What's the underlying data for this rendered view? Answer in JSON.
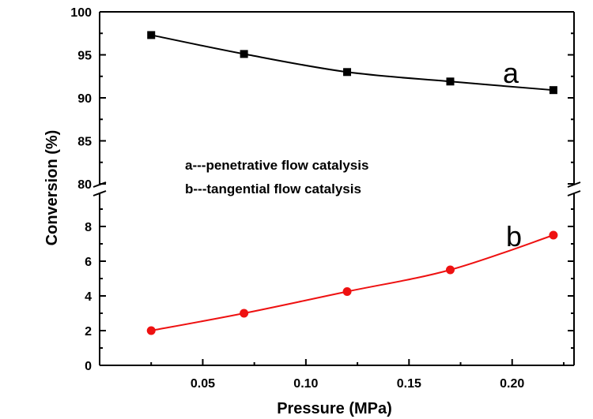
{
  "chart_data": {
    "type": "line",
    "xlabel": "Pressure (MPa)",
    "ylabel": "Conversion (%)",
    "xlim": [
      0.0,
      0.23
    ],
    "xticks": [
      0.05,
      0.1,
      0.15,
      0.2
    ],
    "xtick_labels": [
      "0.05",
      "0.10",
      "0.15",
      "0.20"
    ],
    "y_axis_break": true,
    "upper_panel": {
      "ylim": [
        80,
        100
      ],
      "yticks": [
        80,
        85,
        90,
        95,
        100
      ],
      "ytick_labels": [
        "80",
        "85",
        "90",
        "95",
        "100"
      ]
    },
    "lower_panel": {
      "ylim": [
        0,
        10
      ],
      "yticks": [
        0,
        2,
        4,
        6,
        8
      ],
      "ytick_labels": [
        "0",
        "2",
        "4",
        "6",
        "8"
      ]
    },
    "grid": false,
    "series": [
      {
        "label": "a",
        "legend_text": "a---penetrative flow catalysis",
        "panel": "upper",
        "marker": "square",
        "color": "#000000",
        "x": [
          0.025,
          0.07,
          0.12,
          0.17,
          0.22
        ],
        "y": [
          97.3,
          95.1,
          93.0,
          91.9,
          90.9
        ]
      },
      {
        "label": "b",
        "legend_text": "b---tangential flow catalysis",
        "panel": "lower",
        "marker": "circle",
        "color": "#ee1111",
        "x": [
          0.025,
          0.07,
          0.12,
          0.17,
          0.22
        ],
        "y": [
          2.0,
          3.0,
          4.25,
          5.5,
          7.5
        ]
      }
    ]
  }
}
